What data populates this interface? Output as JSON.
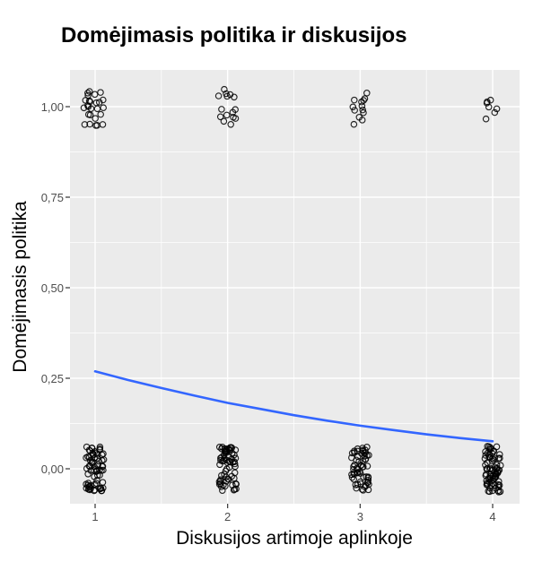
{
  "chart": {
    "title": "Domėjimasis politika ir diskusijos",
    "x_axis": {
      "label": "Diskusijos artimoje aplinkoje",
      "tick_labels": [
        "1",
        "2",
        "3",
        "4"
      ],
      "tick_values": [
        1,
        2,
        3,
        4
      ]
    },
    "y_axis": {
      "label": "Domėjimasis politika",
      "tick_labels": [
        "0,00",
        "0,25",
        "0,50",
        "0,75",
        "1,00"
      ],
      "tick_values": [
        0,
        0.25,
        0.5,
        0.75,
        1
      ]
    },
    "colors": {
      "trend_line": "#3366ff",
      "panel_background": "#ebebeb",
      "gridline": "#ffffff",
      "point_stroke": "#000000",
      "tick_mark": "#333333",
      "tick_text": "#4d4d4d",
      "axis_text": "#000000",
      "title_text": "#000000",
      "page_background": "#ffffff"
    }
  },
  "chart_data": {
    "type": "scatter",
    "description": "Jittered binary-outcome scatter (y = 0 or 1) at x = 1..4 with a descending logistic trend line",
    "x_range_shown": [
      1,
      4
    ],
    "y_range_shown": [
      0,
      1
    ],
    "grid": {
      "major_x": [
        1,
        2,
        3,
        4
      ],
      "minor_x": [
        1.5,
        2.5,
        3.5
      ],
      "major_y": [
        0,
        0.25,
        0.5,
        0.75,
        1
      ],
      "minor_y": [
        0.125,
        0.375,
        0.625,
        0.875
      ]
    },
    "clusters": [
      {
        "x": 1,
        "y": 1,
        "count": 26,
        "jitter_x": 0.085,
        "jitter_y": 0.055
      },
      {
        "x": 2,
        "y": 1,
        "count": 15,
        "jitter_x": 0.075,
        "jitter_y": 0.052
      },
      {
        "x": 3,
        "y": 1,
        "count": 13,
        "jitter_x": 0.06,
        "jitter_y": 0.05
      },
      {
        "x": 4,
        "y": 1,
        "count": 7,
        "jitter_x": 0.055,
        "jitter_y": 0.05
      },
      {
        "x": 1,
        "y": 0,
        "count": 70,
        "jitter_x": 0.07,
        "jitter_y": 0.062
      },
      {
        "x": 2,
        "y": 0,
        "count": 65,
        "jitter_x": 0.065,
        "jitter_y": 0.06
      },
      {
        "x": 3,
        "y": 0,
        "count": 60,
        "jitter_x": 0.065,
        "jitter_y": 0.06
      },
      {
        "x": 4,
        "y": 0,
        "count": 78,
        "jitter_x": 0.06,
        "jitter_y": 0.065
      }
    ],
    "trend": {
      "kind": "logistic_fit",
      "points": [
        [
          1.0,
          0.269
        ],
        [
          1.25,
          0.245
        ],
        [
          1.5,
          0.223
        ],
        [
          1.75,
          0.202
        ],
        [
          2.0,
          0.182
        ],
        [
          2.25,
          0.165
        ],
        [
          2.5,
          0.148
        ],
        [
          2.75,
          0.133
        ],
        [
          3.0,
          0.119
        ],
        [
          3.25,
          0.107
        ],
        [
          3.5,
          0.095
        ],
        [
          3.75,
          0.085
        ],
        [
          4.0,
          0.076
        ]
      ]
    }
  }
}
